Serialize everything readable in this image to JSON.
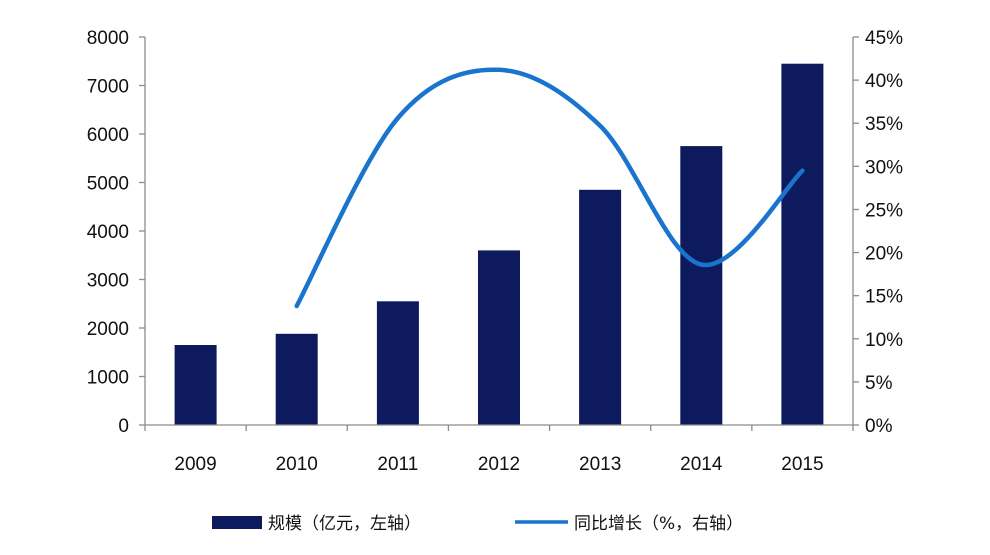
{
  "chart_data": {
    "type": "bar",
    "title": "",
    "xlabel": "",
    "ylabel": "",
    "categories": [
      "2009",
      "2010",
      "2011",
      "2012",
      "2013",
      "2014",
      "2015"
    ],
    "ylim": [
      0,
      8000
    ],
    "y_ticks": [
      "0",
      "1000",
      "2000",
      "3000",
      "4000",
      "5000",
      "6000",
      "7000",
      "8000"
    ],
    "y2lim": [
      0,
      45
    ],
    "y2_ticks": [
      "0%",
      "5%",
      "10%",
      "15%",
      "20%",
      "25%",
      "30%",
      "35%",
      "40%",
      "45%"
    ],
    "grid": false,
    "legend_position": "bottom",
    "series": [
      {
        "name": "规模（亿元，左轴）",
        "type": "bar",
        "axis": "left",
        "color": "#0d1b5e",
        "values": [
          1650,
          1880,
          2550,
          3600,
          4850,
          5750,
          7450
        ]
      },
      {
        "name": "同比增长（%，右轴）",
        "type": "line",
        "axis": "right",
        "color": "#1874cd",
        "values": [
          null,
          13.8,
          35.6,
          41.2,
          34.7,
          18.6,
          29.5
        ]
      }
    ]
  }
}
